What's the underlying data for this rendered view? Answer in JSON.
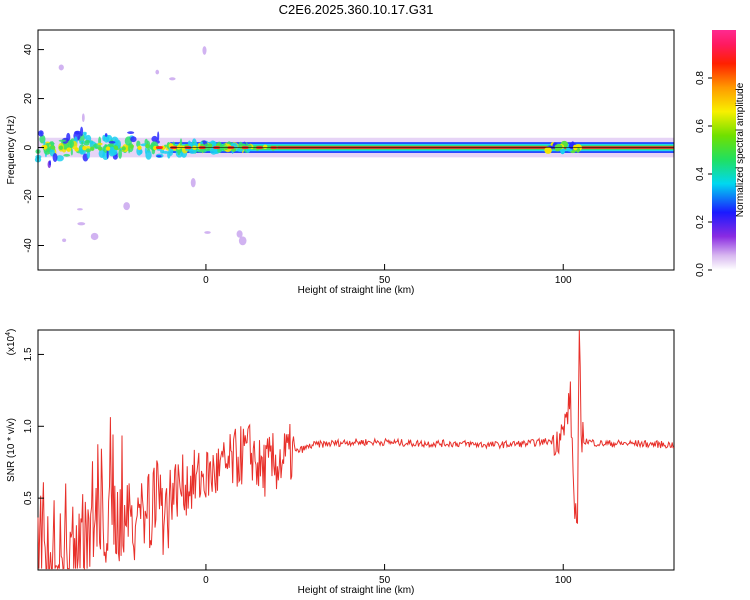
{
  "title": "C2E6.2025.360.10.17.G31",
  "colors": {
    "snr_line": "#e8302a",
    "centre_line": "#111111"
  },
  "chart_data": [
    {
      "type": "heatmap",
      "xlabel": "Height of straight line (km)",
      "ylabel": "Frequency (Hz)",
      "xlim": [
        -47,
        131
      ],
      "ylim": [
        -50,
        48
      ],
      "xticks": [
        0,
        50,
        100
      ],
      "yticks": [
        -40,
        -20,
        0,
        20,
        40
      ],
      "grid": false,
      "colorbar": {
        "label": "Normalized spectral amplitude",
        "range": [
          0,
          1
        ],
        "ticks": [
          "0.0",
          "0.2",
          "0.4",
          "0.6",
          "0.8"
        ],
        "colormap": "rainbow (white, purple, blue, cyan, green, yellow, orange, red, pink)"
      },
      "description_values": {
        "centre_frequency": 0,
        "band_halfwidth": 1.5
      }
    },
    {
      "type": "line",
      "xlabel": "Height of straight line (km)",
      "ylabel": "SNR (10 * v/v)",
      "y_multiplier": "(x10",
      "y_multiplier_exp": "4",
      "xlim": [
        -47,
        131
      ],
      "ylim": [
        0,
        1.67
      ],
      "xticks": [
        0,
        50,
        100
      ],
      "yticks": [
        "0.5",
        "1.0",
        "1.5"
      ],
      "grid": false,
      "series": [
        {
          "values_at_keypoints": {
            "x": [
              -47,
              -40,
              -35,
              -30,
              -25,
              -20,
              -15,
              -13,
              -10,
              -5,
              0,
              5,
              10,
              13,
              15,
              20,
              25,
              30,
              40,
              50,
              60,
              70,
              80,
              90,
              97,
              100,
              102,
              103,
              104,
              104.5,
              105,
              106,
              110,
              120,
              131
            ],
            "y": [
              0.05,
              0.1,
              0.3,
              0.4,
              0.5,
              0.55,
              0.6,
              0.65,
              0.55,
              0.6,
              0.65,
              0.7,
              0.8,
              0.82,
              0.7,
              0.75,
              0.82,
              0.87,
              0.89,
              0.89,
              0.88,
              0.88,
              0.87,
              0.88,
              0.9,
              0.95,
              1.2,
              0.5,
              0.3,
              1.67,
              0.95,
              0.9,
              0.88,
              0.88,
              0.87
            ]
          }
        }
      ]
    }
  ]
}
